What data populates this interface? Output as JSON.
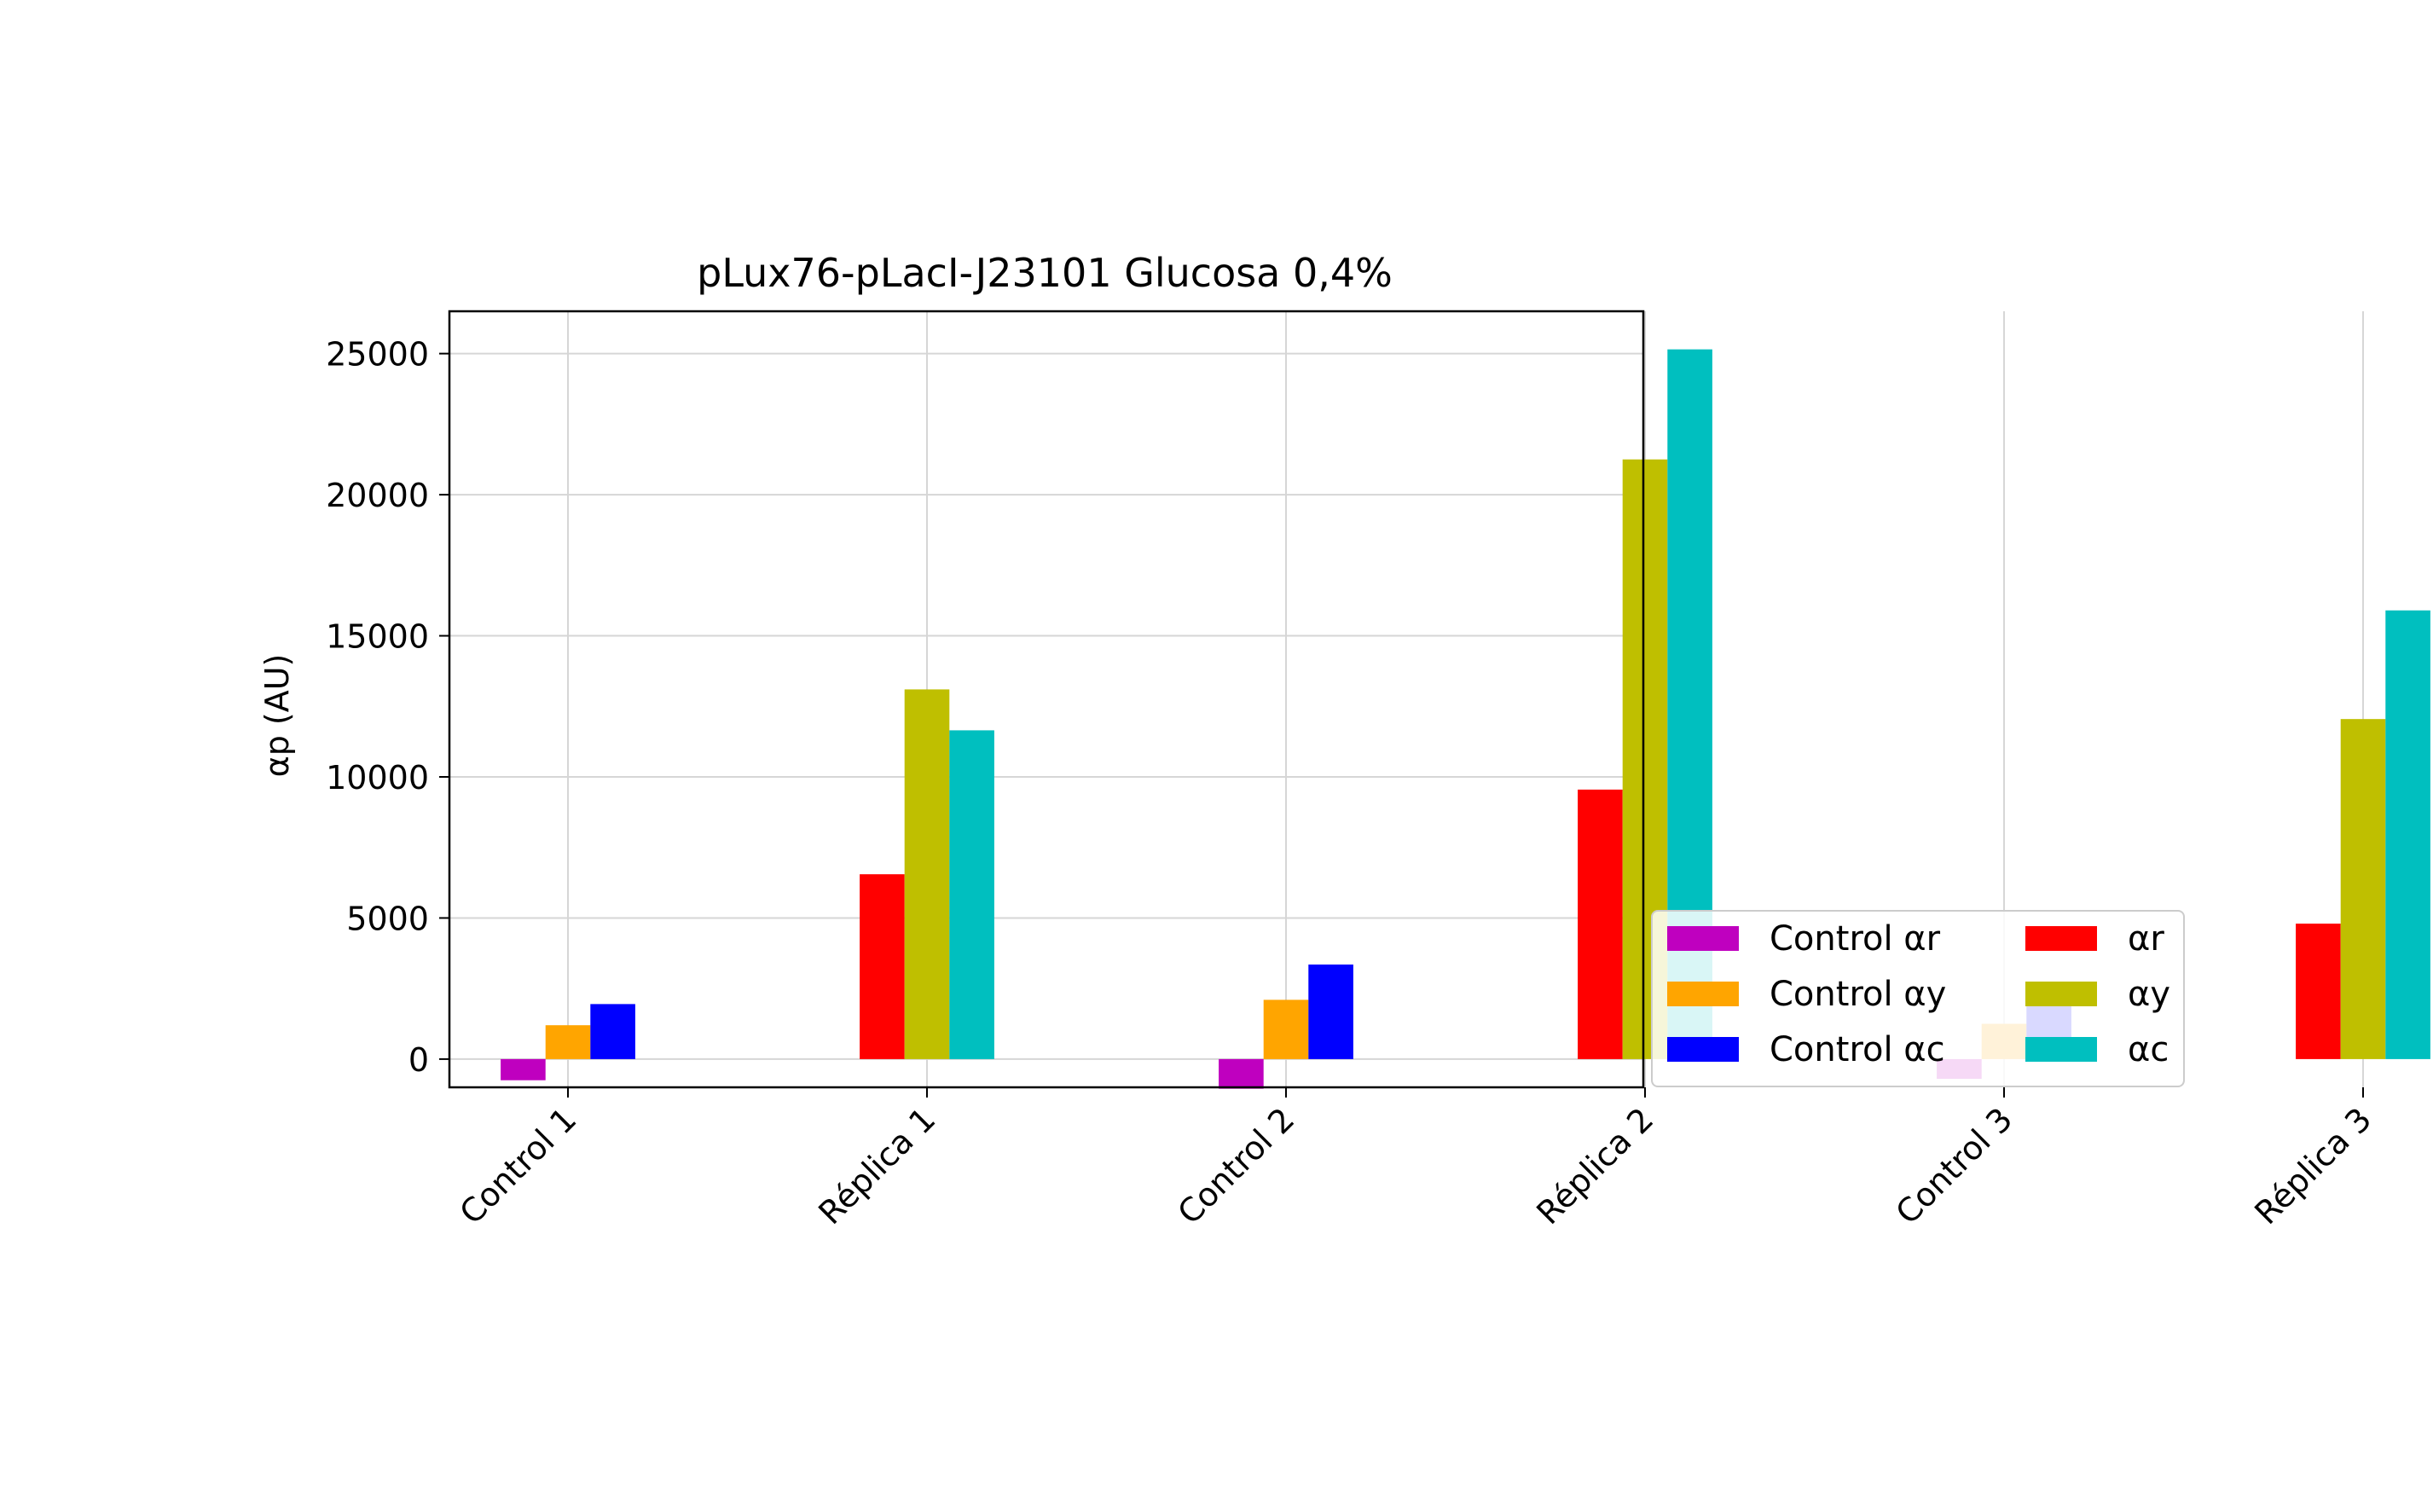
{
  "chart_data": {
    "type": "bar",
    "title": "pLux76-pLacI-J23101 Glucosa 0,4%",
    "xlabel": "",
    "ylabel": "αp (AU)",
    "categories": [
      "Control 1",
      "Réplica 1",
      "Control 2",
      "Réplica 2",
      "Control 3",
      "Réplica 3"
    ],
    "ylim": [
      -1000,
      26500
    ],
    "yticks": [
      0,
      5000,
      10000,
      15000,
      20000,
      25000
    ],
    "grid": true,
    "legend_position": "outside-right",
    "series": [
      {
        "name": "Control αr",
        "color": "#bf00bf",
        "values": [
          -750,
          null,
          -1050,
          null,
          -700,
          null
        ]
      },
      {
        "name": "Control αy",
        "color": "#ffa500",
        "values": [
          1200,
          null,
          2100,
          null,
          1250,
          null
        ]
      },
      {
        "name": "Control αc",
        "color": "#0000ff",
        "values": [
          1950,
          null,
          3350,
          null,
          2500,
          null
        ]
      },
      {
        "name": "αr",
        "color": "#ff0000",
        "values": [
          null,
          6550,
          null,
          9550,
          null,
          4800
        ]
      },
      {
        "name": "αy",
        "color": "#bfbf00",
        "values": [
          null,
          13100,
          null,
          21250,
          null,
          12050
        ]
      },
      {
        "name": "αc",
        "color": "#00bfbf",
        "values": [
          null,
          11650,
          null,
          25150,
          null,
          15900
        ]
      }
    ]
  }
}
